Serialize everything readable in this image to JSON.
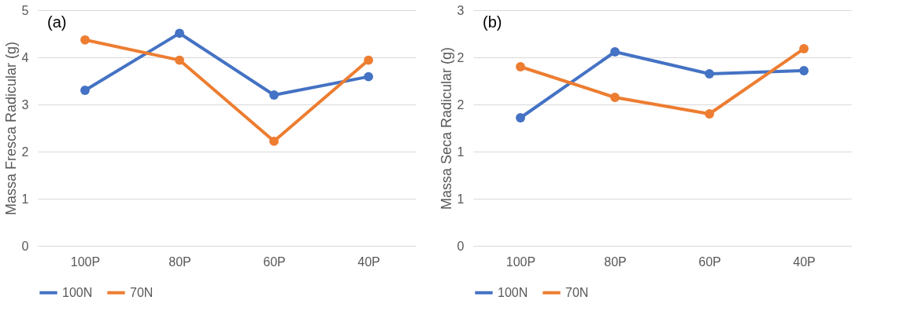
{
  "chart_data": [
    {
      "type": "line",
      "ylabel": "Massa Fresca Radicular (g)",
      "annotations": [
        "(a)"
      ],
      "categories": [
        "100P",
        "80P",
        "60P",
        "40P"
      ],
      "series": [
        {
          "name": "100N",
          "color": "#4472c4",
          "values": [
            3.3,
            4.51,
            3.2,
            3.59
          ]
        },
        {
          "name": "70N",
          "color": "#ed7d31",
          "values": [
            4.37,
            3.94,
            2.22,
            3.94
          ]
        }
      ],
      "ylim": [
        0,
        5
      ],
      "yticks": [
        0,
        1,
        2,
        3,
        4,
        5
      ],
      "grid": "y",
      "legend": "bottom",
      "marker": "circle",
      "line_style": "solid"
    },
    {
      "type": "line",
      "ylabel": "Massa Seca Radicular (g)",
      "annotations": [
        "(b)"
      ],
      "categories": [
        "100P",
        "80P",
        "60P",
        "40P"
      ],
      "series": [
        {
          "name": "100N",
          "color": "#4472c4",
          "values": [
            1.63,
            2.47,
            2.19,
            2.23
          ]
        },
        {
          "name": "70N",
          "color": "#ed7d31",
          "values": [
            2.28,
            1.89,
            1.68,
            2.51
          ]
        }
      ],
      "ylim": [
        0,
        3
      ],
      "yticks": [
        0,
        {
          "value": 0.6,
          "label": "1"
        },
        {
          "value": 1.2,
          "label": "1"
        },
        {
          "value": 1.8,
          "label": "2"
        },
        {
          "value": 2.4,
          "label": "2"
        },
        {
          "value": 3,
          "label": "3"
        }
      ],
      "grid": "y",
      "legend": "bottom",
      "marker": "circle",
      "line_style": "solid"
    }
  ]
}
